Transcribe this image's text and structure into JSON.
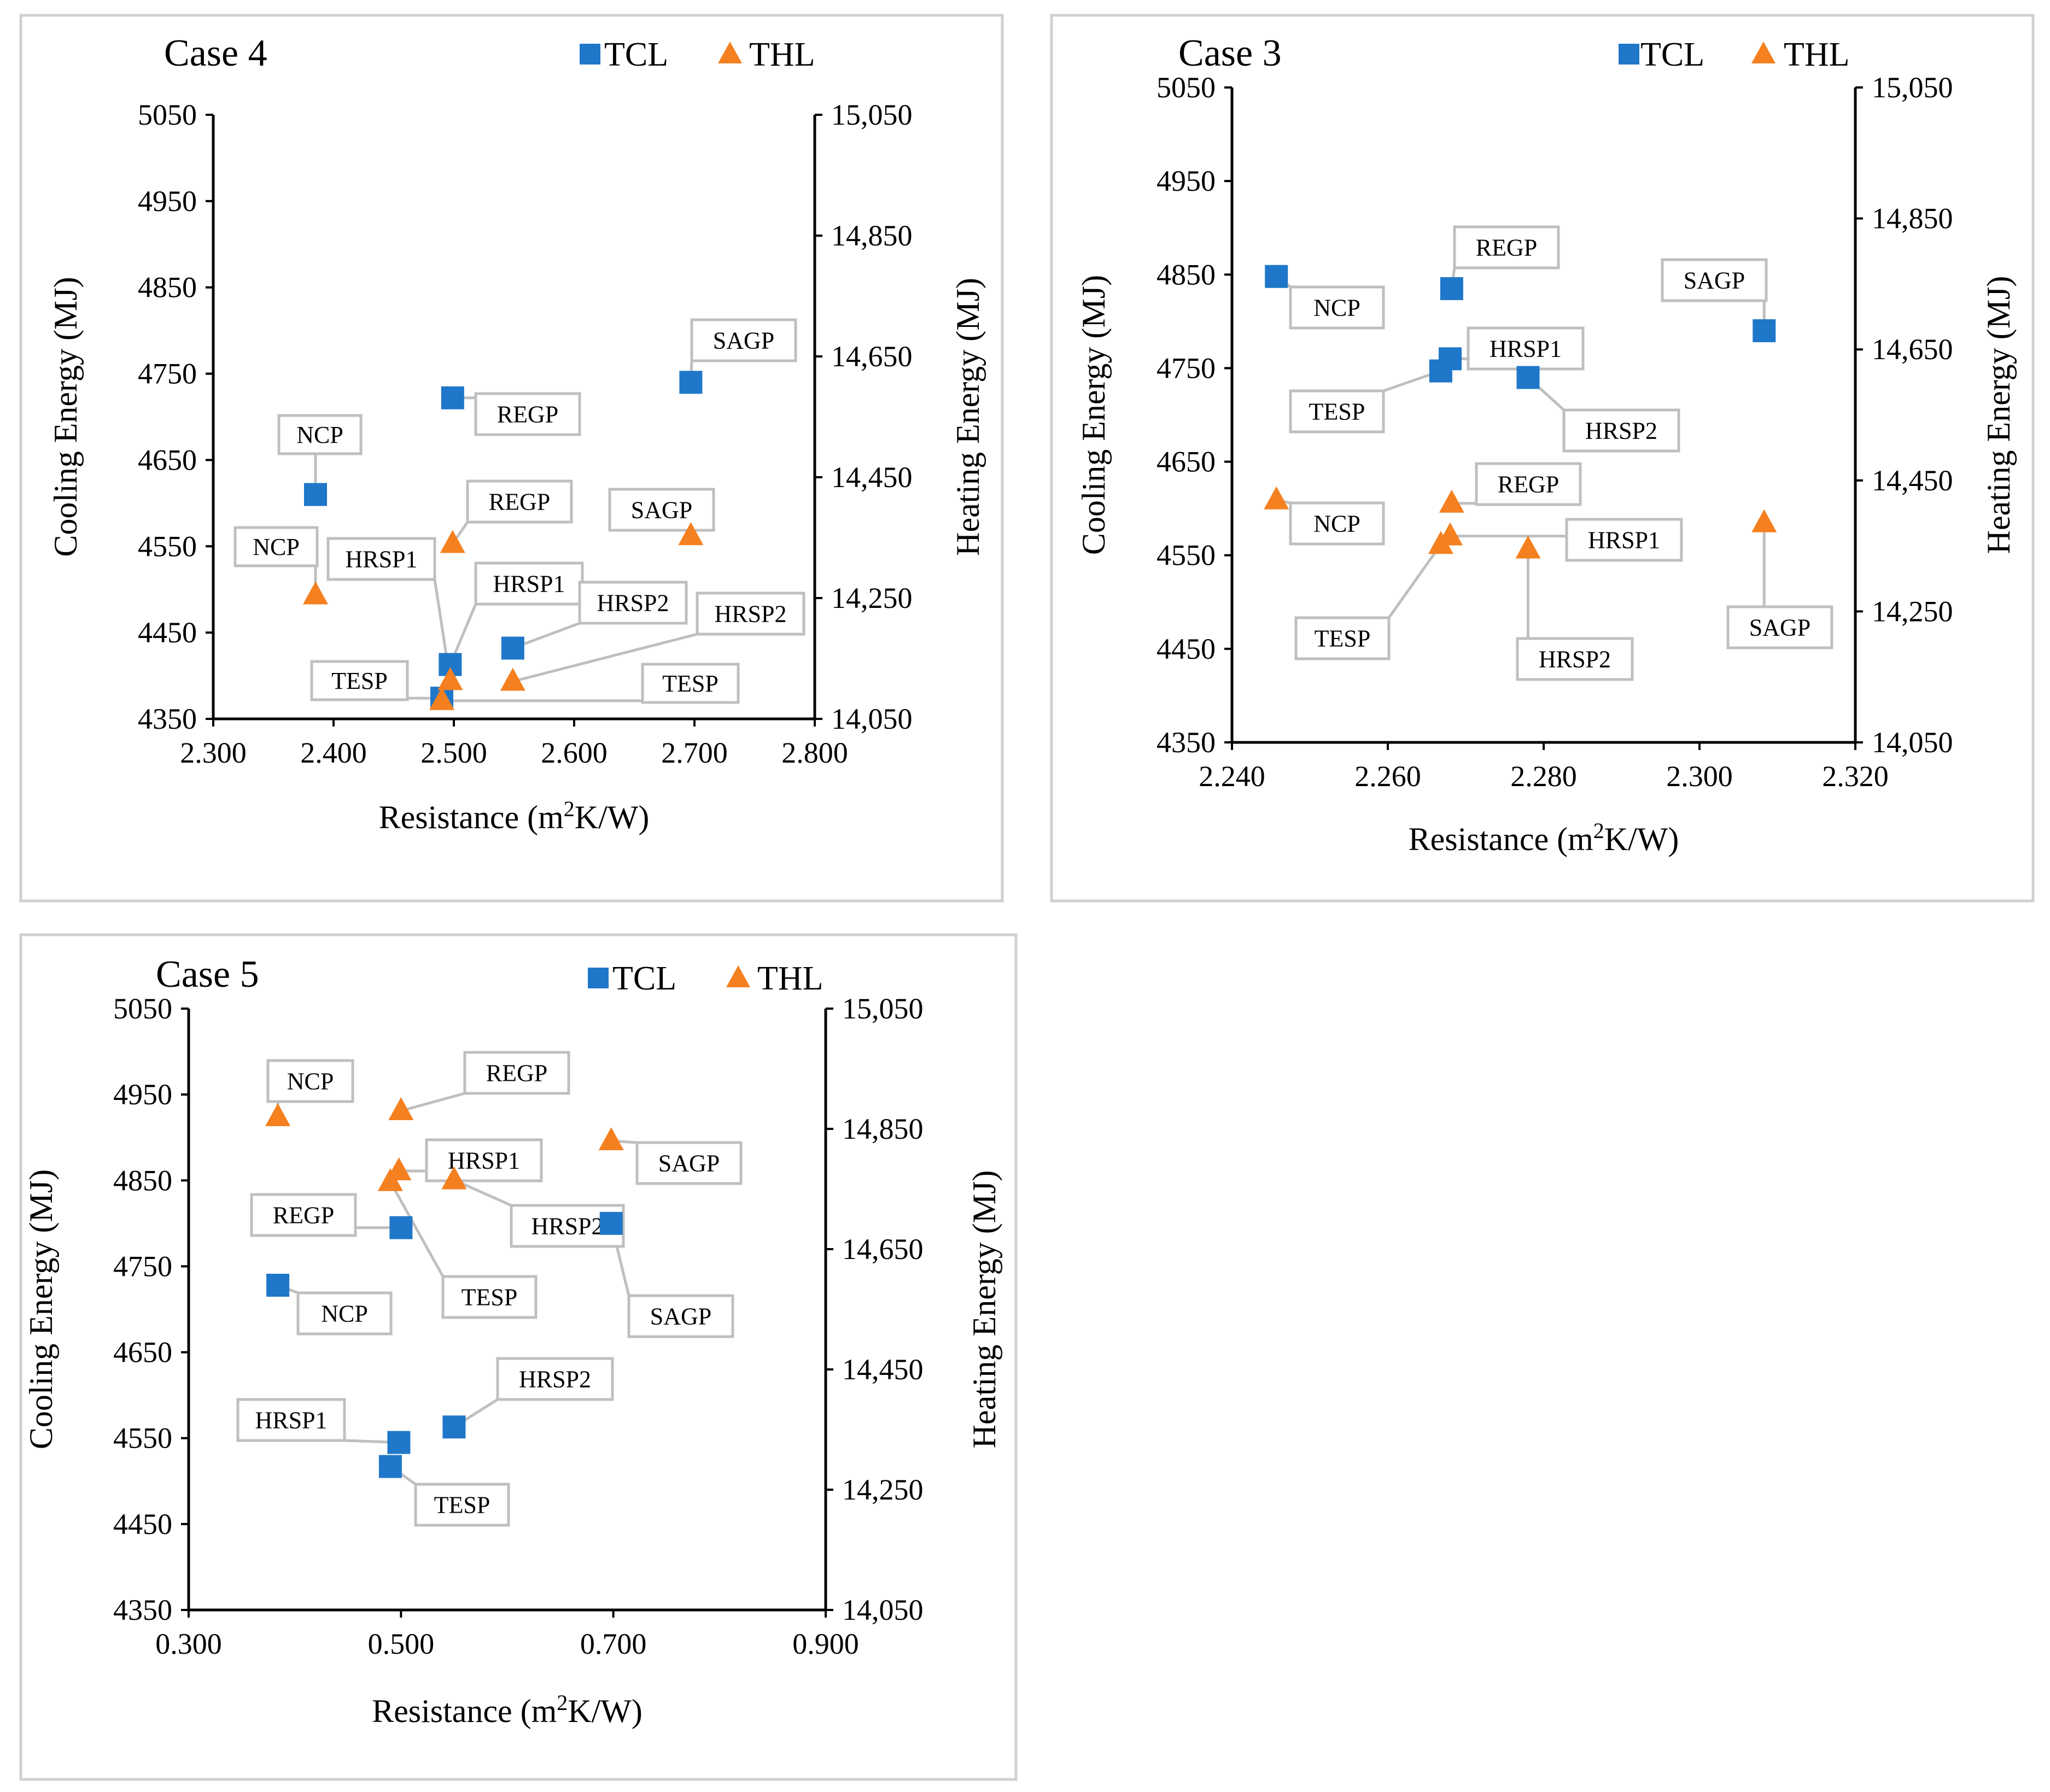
{
  "figure": {
    "charts": [
      {
        "id": "case4",
        "title": "Case 4",
        "legend": [
          {
            "label": "TCL",
            "marker": "square",
            "color": "#1f77c9"
          },
          {
            "label": "THL",
            "marker": "triangle",
            "color": "#f4801f"
          }
        ]
      },
      {
        "id": "case3",
        "title": "Case 3",
        "legend": [
          {
            "label": "TCL",
            "marker": "square",
            "color": "#1f77c9"
          },
          {
            "label": "THL",
            "marker": "triangle",
            "color": "#f4801f"
          }
        ]
      },
      {
        "id": "case5",
        "title": "Case 5",
        "legend": [
          {
            "label": "TCL",
            "marker": "square",
            "color": "#1f77c9"
          },
          {
            "label": "THL",
            "marker": "triangle",
            "color": "#f4801f"
          }
        ]
      }
    ]
  },
  "chart_data": [
    {
      "type": "scatter",
      "title": "Case 4",
      "xlabel_main": "Resistance (m",
      "xlabel_sup": "2",
      "xlabel_tail": "K/W)",
      "ylabel_left": "Cooling Energy (MJ)",
      "ylabel_right": "Heating Energy (MJ)",
      "xlim": [
        2.3,
        2.8
      ],
      "xticks": [
        "2.300",
        "2.400",
        "2.500",
        "2.600",
        "2.700",
        "2.800"
      ],
      "ylim_left": [
        4350,
        5050
      ],
      "yticks_left": [
        "4350",
        "4450",
        "4550",
        "4650",
        "4750",
        "4850",
        "4950",
        "5050"
      ],
      "ylim_right": [
        14050,
        15050
      ],
      "yticks_right": [
        "14,050",
        "14,250",
        "14,450",
        "14,650",
        "14,850",
        "15,050"
      ],
      "series": [
        {
          "name": "TCL",
          "axis": "left",
          "points": [
            {
              "label": "NCP",
              "x": 2.385,
              "y": 4610
            },
            {
              "label": "REGP",
              "x": 2.499,
              "y": 4722
            },
            {
              "label": "HRSP1",
              "x": 2.497,
              "y": 4413
            },
            {
              "label": "HRSP2",
              "x": 2.549,
              "y": 4432
            },
            {
              "label": "TESP",
              "x": 2.49,
              "y": 4374
            },
            {
              "label": "SAGP",
              "x": 2.697,
              "y": 4740
            }
          ]
        },
        {
          "name": "THL",
          "axis": "right",
          "points": [
            {
              "label": "NCP",
              "x": 2.385,
              "y": 14255
            },
            {
              "label": "REGP",
              "x": 2.499,
              "y": 14340
            },
            {
              "label": "HRSP1",
              "x": 2.497,
              "y": 14113
            },
            {
              "label": "HRSP2",
              "x": 2.549,
              "y": 14112
            },
            {
              "label": "TESP",
              "x": 2.49,
              "y": 14080
            },
            {
              "label": "SAGP",
              "x": 2.697,
              "y": 14353
            }
          ]
        }
      ]
    },
    {
      "type": "scatter",
      "title": "Case 3",
      "xlabel_main": "Resistance (m",
      "xlabel_sup": "2",
      "xlabel_tail": "K/W)",
      "ylabel_left": "Cooling Energy (MJ)",
      "ylabel_right": "Heating Energy (MJ)",
      "xlim": [
        2.24,
        2.32
      ],
      "xticks": [
        "2.240",
        "2.260",
        "2.280",
        "2.300",
        "2.320"
      ],
      "ylim_left": [
        4350,
        5050
      ],
      "yticks_left": [
        "4350",
        "4450",
        "4550",
        "4650",
        "4750",
        "4850",
        "4950",
        "5050"
      ],
      "ylim_right": [
        14050,
        15050
      ],
      "yticks_right": [
        "14,050",
        "14,250",
        "14,450",
        "14,650",
        "14,850",
        "15,050"
      ],
      "series": [
        {
          "name": "TCL",
          "axis": "left",
          "points": [
            {
              "label": "NCP",
              "x": 2.2457,
              "y": 4848
            },
            {
              "label": "REGP",
              "x": 2.2682,
              "y": 4835
            },
            {
              "label": "HRSP1",
              "x": 2.268,
              "y": 4760
            },
            {
              "label": "HRSP2",
              "x": 2.278,
              "y": 4740
            },
            {
              "label": "TESP",
              "x": 2.2668,
              "y": 4747
            },
            {
              "label": "SAGP",
              "x": 2.3083,
              "y": 4790
            }
          ]
        },
        {
          "name": "THL",
          "axis": "right",
          "points": [
            {
              "label": "NCP",
              "x": 2.2457,
              "y": 14420
            },
            {
              "label": "REGP",
              "x": 2.2682,
              "y": 14415
            },
            {
              "label": "HRSP1",
              "x": 2.268,
              "y": 14365
            },
            {
              "label": "HRSP2",
              "x": 2.278,
              "y": 14345
            },
            {
              "label": "TESP",
              "x": 2.2668,
              "y": 14352
            },
            {
              "label": "SAGP",
              "x": 2.3083,
              "y": 14385
            }
          ]
        }
      ]
    },
    {
      "type": "scatter",
      "title": "Case 5",
      "xlabel_main": "Resistance (m",
      "xlabel_sup": "2",
      "xlabel_tail": "K/W)",
      "ylabel_left": "Cooling Energy (MJ)",
      "ylabel_right": "Heating Energy (MJ)",
      "xlim": [
        0.3,
        0.9
      ],
      "xticks": [
        "0.300",
        "0.500",
        "0.700",
        "0.900"
      ],
      "ylim_left": [
        4350,
        5050
      ],
      "yticks_left": [
        "4350",
        "4450",
        "4550",
        "4650",
        "4750",
        "4850",
        "4950",
        "5050"
      ],
      "ylim_right": [
        14050,
        15050
      ],
      "yticks_right": [
        "14,050",
        "14,250",
        "14,450",
        "14,650",
        "14,850",
        "15,050"
      ],
      "series": [
        {
          "name": "TCL",
          "axis": "left",
          "points": [
            {
              "label": "NCP",
              "x": 0.384,
              "y": 4728
            },
            {
              "label": "REGP",
              "x": 0.5,
              "y": 4795
            },
            {
              "label": "HRSP1",
              "x": 0.498,
              "y": 4545
            },
            {
              "label": "HRSP2",
              "x": 0.55,
              "y": 4563
            },
            {
              "label": "TESP",
              "x": 0.49,
              "y": 4517
            },
            {
              "label": "SAGP",
              "x": 0.698,
              "y": 4800
            }
          ]
        },
        {
          "name": "THL",
          "axis": "right",
          "points": [
            {
              "label": "NCP",
              "x": 0.384,
              "y": 14870
            },
            {
              "label": "REGP",
              "x": 0.5,
              "y": 14880
            },
            {
              "label": "HRSP1",
              "x": 0.498,
              "y": 14780
            },
            {
              "label": "HRSP2",
              "x": 0.55,
              "y": 14765
            },
            {
              "label": "TESP",
              "x": 0.49,
              "y": 14762
            },
            {
              "label": "SAGP",
              "x": 0.698,
              "y": 14830
            }
          ]
        }
      ]
    }
  ]
}
